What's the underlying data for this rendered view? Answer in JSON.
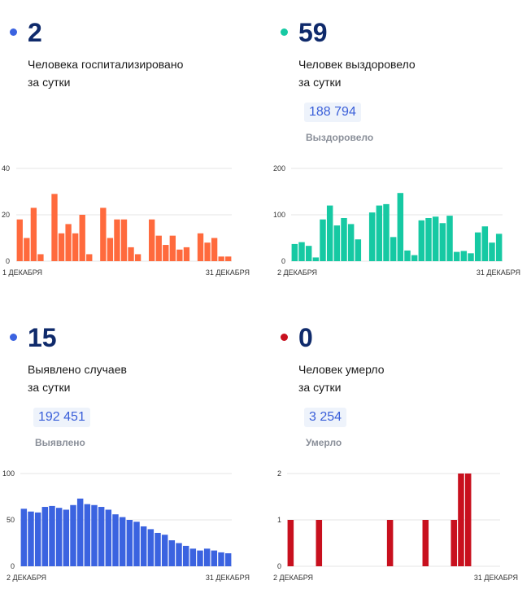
{
  "cards": [
    {
      "id": "hospitalized",
      "number": "2",
      "caption_line1": "Человека госпитализировано",
      "caption_line2": "за сутки",
      "dot_color": "#3b63e0",
      "total": null,
      "total_label": null
    },
    {
      "id": "recovered",
      "number": "59",
      "caption_line1": "Человек выздоровело",
      "caption_line2": "за сутки",
      "dot_color": "#16c9a3",
      "total": "188 794",
      "total_label": "Выздоровело"
    },
    {
      "id": "cases",
      "number": "15",
      "caption_line1": "Выявлено случаев",
      "caption_line2": "за сутки",
      "dot_color": "#3b63e0",
      "total": "192 451",
      "total_label": "Выявлено"
    },
    {
      "id": "deaths",
      "number": "0",
      "caption_line1": "Человек умерло",
      "caption_line2": "за сутки",
      "dot_color": "#c8101e",
      "total": "3 254",
      "total_label": "Умерло"
    }
  ],
  "chart_data": [
    {
      "type": "bar",
      "color": "#ff6a3d",
      "ylim": [
        0,
        40
      ],
      "yticks": [
        "0",
        "20",
        "40"
      ],
      "x_start_label": "1 ДЕКАБРЯ",
      "x_end_label": "31 ДЕКАБРЯ",
      "values": [
        18,
        10,
        23,
        3,
        null,
        29,
        12,
        16,
        12,
        20,
        3,
        null,
        23,
        10,
        18,
        18,
        6,
        3,
        null,
        18,
        11,
        7,
        11,
        5,
        6,
        null,
        12,
        8,
        10,
        2,
        2
      ]
    },
    {
      "type": "bar",
      "color": "#16c9a3",
      "ylim": [
        0,
        200
      ],
      "yticks": [
        "0",
        "100",
        "200"
      ],
      "x_start_label": "2 ДЕКАБРЯ",
      "x_end_label": "31 ДЕКАБРЯ",
      "values": [
        37,
        41,
        33,
        8,
        90,
        120,
        77,
        93,
        80,
        47,
        null,
        105,
        120,
        123,
        52,
        147,
        23,
        13,
        88,
        93,
        96,
        82,
        98,
        20,
        22,
        17,
        62,
        75,
        40,
        59
      ]
    },
    {
      "type": "bar",
      "color": "#3b63e0",
      "ylim": [
        0,
        100
      ],
      "yticks": [
        "0",
        "50",
        "100"
      ],
      "x_start_label": "2 ДЕКАБРЯ",
      "x_end_label": "31 ДЕКАБРЯ",
      "values": [
        62,
        59,
        58,
        64,
        65,
        63,
        61,
        66,
        73,
        67,
        66,
        64,
        61,
        56,
        53,
        50,
        48,
        43,
        40,
        36,
        34,
        28,
        25,
        22,
        19,
        17,
        19,
        17,
        15,
        14
      ]
    },
    {
      "type": "bar",
      "color": "#c8101e",
      "ylim": [
        0,
        2
      ],
      "yticks": [
        "0",
        "1",
        "2"
      ],
      "x_start_label": "2 ДЕКАБРЯ",
      "x_end_label": "31 ДЕКАБРЯ",
      "values": [
        1,
        0,
        0,
        0,
        1,
        0,
        0,
        0,
        0,
        0,
        0,
        0,
        0,
        0,
        1,
        0,
        0,
        0,
        0,
        1,
        0,
        0,
        0,
        1,
        2,
        2,
        0,
        0,
        0,
        0
      ]
    }
  ]
}
